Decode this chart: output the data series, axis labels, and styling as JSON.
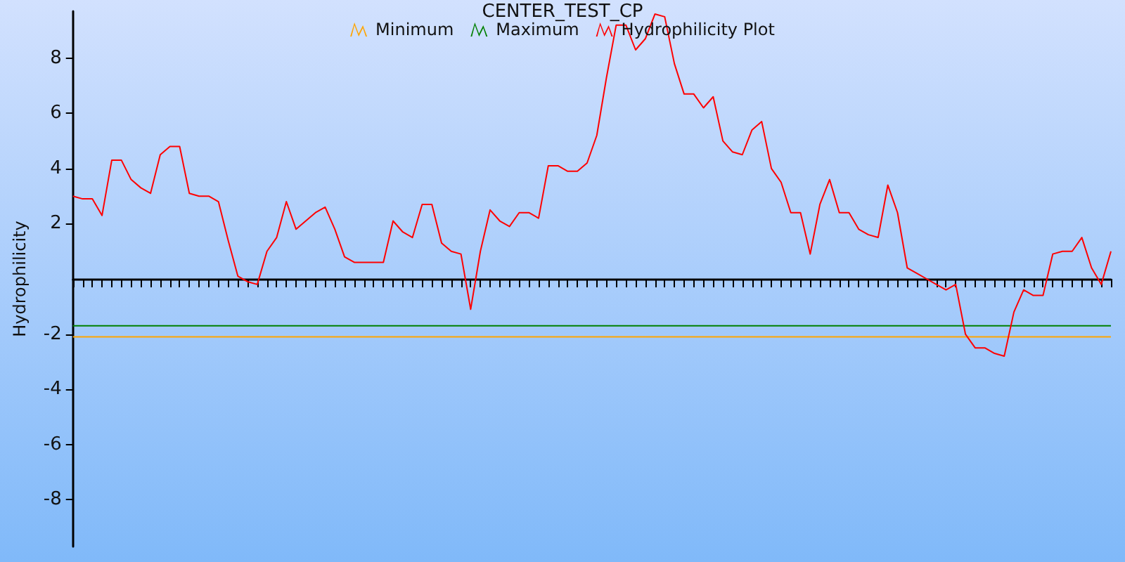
{
  "chart_data": {
    "type": "line",
    "title": "CENTER_TEST_CP",
    "ylabel": "Hydrophilicity",
    "categories": [
      null,
      null,
      null,
      null,
      null,
      null,
      null,
      null,
      null,
      null,
      null,
      null,
      null,
      null,
      null,
      null,
      null,
      null,
      null,
      null,
      null,
      null,
      null,
      null,
      null,
      null,
      null,
      null,
      null,
      null,
      null,
      null,
      null,
      null,
      null,
      null,
      null,
      null,
      null,
      null,
      null,
      null,
      null,
      null,
      null,
      null,
      null,
      null,
      null,
      null,
      null,
      null,
      null,
      null,
      null,
      null,
      null,
      null,
      null,
      null,
      null,
      null,
      null,
      null,
      null,
      null,
      null,
      null,
      null,
      null,
      null,
      null,
      null,
      null,
      null,
      null,
      null,
      null,
      null,
      null,
      null,
      null,
      null,
      null,
      null,
      null,
      null,
      null,
      null,
      null,
      null,
      null,
      null,
      null,
      null,
      null,
      null,
      null,
      null,
      null,
      null,
      null,
      null,
      null,
      null,
      null,
      null,
      null
    ],
    "series": [
      {
        "name": "Minimum",
        "color": "#ffa500",
        "values": [
          -2.1,
          -2.1,
          -2.1,
          -2.1,
          -2.1,
          -2.1,
          -2.1,
          -2.1,
          -2.1,
          -2.1,
          -2.1,
          -2.1,
          -2.1,
          -2.1,
          -2.1,
          -2.1,
          -2.1,
          -2.1,
          -2.1,
          -2.1,
          -2.1,
          -2.1,
          -2.1,
          -2.1,
          -2.1,
          -2.1,
          -2.1,
          -2.1,
          -2.1,
          -2.1,
          -2.1,
          -2.1,
          -2.1,
          -2.1,
          -2.1,
          -2.1,
          -2.1,
          -2.1,
          -2.1,
          -2.1,
          -2.1,
          -2.1,
          -2.1,
          -2.1,
          -2.1,
          -2.1,
          -2.1,
          -2.1,
          -2.1,
          -2.1,
          -2.1,
          -2.1,
          -2.1,
          -2.1,
          -2.1,
          -2.1,
          -2.1,
          -2.1,
          -2.1,
          -2.1,
          -2.1,
          -2.1,
          -2.1,
          -2.1,
          -2.1,
          -2.1,
          -2.1,
          -2.1,
          -2.1,
          -2.1,
          -2.1,
          -2.1,
          -2.1,
          -2.1,
          -2.1,
          -2.1,
          -2.1,
          -2.1,
          -2.1,
          -2.1,
          -2.1,
          -2.1,
          -2.1,
          -2.1,
          -2.1,
          -2.1,
          -2.1,
          -2.1,
          -2.1,
          -2.1,
          -2.1,
          -2.1,
          -2.1,
          -2.1,
          -2.1,
          -2.1,
          -2.1,
          -2.1,
          -2.1,
          -2.1,
          -2.1,
          -2.1,
          -2.1,
          -2.1,
          -2.1,
          -2.1,
          -2.1,
          -2.1
        ]
      },
      {
        "name": "Maximum",
        "color": "#008000",
        "values": [
          -1.7,
          -1.7,
          -1.7,
          -1.7,
          -1.7,
          -1.7,
          -1.7,
          -1.7,
          -1.7,
          -1.7,
          -1.7,
          -1.7,
          -1.7,
          -1.7,
          -1.7,
          -1.7,
          -1.7,
          -1.7,
          -1.7,
          -1.7,
          -1.7,
          -1.7,
          -1.7,
          -1.7,
          -1.7,
          -1.7,
          -1.7,
          -1.7,
          -1.7,
          -1.7,
          -1.7,
          -1.7,
          -1.7,
          -1.7,
          -1.7,
          -1.7,
          -1.7,
          -1.7,
          -1.7,
          -1.7,
          -1.7,
          -1.7,
          -1.7,
          -1.7,
          -1.7,
          -1.7,
          -1.7,
          -1.7,
          -1.7,
          -1.7,
          -1.7,
          -1.7,
          -1.7,
          -1.7,
          -1.7,
          -1.7,
          -1.7,
          -1.7,
          -1.7,
          -1.7,
          -1.7,
          -1.7,
          -1.7,
          -1.7,
          -1.7,
          -1.7,
          -1.7,
          -1.7,
          -1.7,
          -1.7,
          -1.7,
          -1.7,
          -1.7,
          -1.7,
          -1.7,
          -1.7,
          -1.7,
          -1.7,
          -1.7,
          -1.7,
          -1.7,
          -1.7,
          -1.7,
          -1.7,
          -1.7,
          -1.7,
          -1.7,
          -1.7,
          -1.7,
          -1.7,
          -1.7,
          -1.7,
          -1.7,
          -1.7,
          -1.7,
          -1.7,
          -1.7,
          -1.7,
          -1.7,
          -1.7,
          -1.7,
          -1.7,
          -1.7,
          -1.7,
          -1.7,
          -1.7,
          -1.7,
          -1.7
        ]
      },
      {
        "name": "Hydrophilicity Plot",
        "color": "#ff0000",
        "values": [
          3.0,
          2.9,
          2.9,
          2.3,
          4.3,
          4.3,
          3.6,
          3.3,
          3.1,
          4.5,
          4.8,
          4.8,
          3.1,
          3.0,
          3.0,
          2.8,
          1.4,
          0.1,
          -0.1,
          -0.2,
          1.0,
          1.5,
          2.8,
          1.8,
          2.1,
          2.4,
          2.6,
          1.8,
          0.8,
          0.6,
          0.6,
          0.6,
          0.6,
          2.1,
          1.7,
          1.5,
          2.7,
          2.7,
          1.3,
          1.0,
          0.9,
          -1.1,
          1.0,
          2.5,
          2.1,
          1.9,
          2.4,
          2.4,
          2.2,
          4.1,
          4.1,
          3.9,
          3.9,
          4.2,
          5.2,
          7.3,
          9.2,
          9.2,
          8.3,
          8.7,
          9.6,
          9.5,
          7.8,
          6.7,
          6.7,
          6.2,
          6.6,
          5.0,
          4.6,
          4.5,
          5.4,
          5.7,
          4.0,
          3.5,
          2.4,
          2.4,
          0.9,
          2.7,
          3.6,
          2.4,
          2.4,
          1.8,
          1.6,
          1.5,
          3.4,
          2.4,
          0.4,
          0.2,
          0.0,
          -0.2,
          -0.4,
          -0.2,
          -2.0,
          -2.5,
          -2.5,
          -2.7,
          -2.8,
          -1.2,
          -0.4,
          -0.6,
          -0.6,
          0.9,
          1.0,
          1.0,
          1.5,
          0.4,
          -0.2,
          1.0
        ]
      }
    ],
    "ylim": [
      -9.7,
      9.7
    ],
    "yticks": [
      -8,
      -6,
      -4,
      -2,
      2,
      4,
      6,
      8
    ],
    "grid": false,
    "legend": "top",
    "tick_labels": "y",
    "line_style": "solid"
  }
}
